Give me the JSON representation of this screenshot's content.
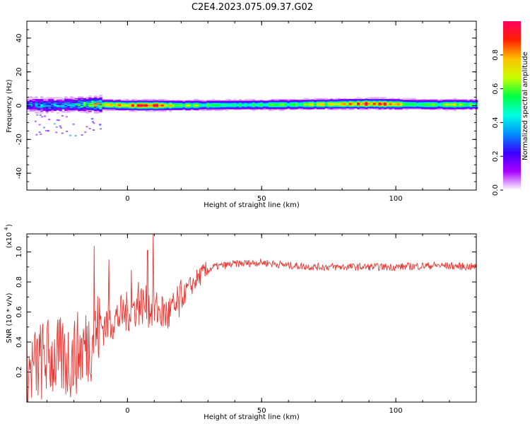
{
  "title": "C2E4.2023.075.09.37.G02",
  "chart_data": [
    {
      "type": "heatmap",
      "xlabel": "Height of straight line (km)",
      "ylabel": "Frequency (Hz)",
      "xlim": [
        -37.5,
        130
      ],
      "ylim": [
        -50,
        50
      ],
      "xticks": [
        0,
        50,
        100
      ],
      "yticks": [
        -40,
        -20,
        0,
        20,
        40
      ],
      "colorbar": {
        "label": "Normalized spectral amplitude",
        "range": [
          0,
          1
        ],
        "ticks": [
          "0.0",
          "0.2",
          "0.4",
          "0.6",
          "0.8"
        ],
        "colors": [
          "#ffffff",
          "#a800ff",
          "#3a00ff",
          "#0090ff",
          "#00ffe0",
          "#00ff40",
          "#c8ff00",
          "#ffc000",
          "#ff2000",
          "#ff0060"
        ]
      },
      "ridge": {
        "center_frequency_hz": [
          {
            "x": -37,
            "f": 0.5
          },
          {
            "x": -30,
            "f": 0.0
          },
          {
            "x": -20,
            "f": 0.5
          },
          {
            "x": -10,
            "f": 0.5
          },
          {
            "x": 0,
            "f": 0.0
          },
          {
            "x": 20,
            "f": 0.0
          },
          {
            "x": 60,
            "f": 0.5
          },
          {
            "x": 90,
            "f": 1.0
          },
          {
            "x": 110,
            "f": 0.5
          },
          {
            "x": 130,
            "f": 0.5
          }
        ],
        "amplitude": [
          {
            "x": -37,
            "a": 0.3
          },
          {
            "x": -25,
            "a": 0.35
          },
          {
            "x": -15,
            "a": 0.45
          },
          {
            "x": -8,
            "a": 0.75
          },
          {
            "x": 0,
            "a": 0.85
          },
          {
            "x": 10,
            "a": 0.9
          },
          {
            "x": 15,
            "a": 0.8
          },
          {
            "x": 20,
            "a": 0.6
          },
          {
            "x": 40,
            "a": 0.5
          },
          {
            "x": 60,
            "a": 0.55
          },
          {
            "x": 70,
            "a": 0.65
          },
          {
            "x": 80,
            "a": 0.75
          },
          {
            "x": 88,
            "a": 0.95
          },
          {
            "x": 98,
            "a": 0.9
          },
          {
            "x": 103,
            "a": 0.55
          },
          {
            "x": 115,
            "a": 0.55
          },
          {
            "x": 122,
            "a": 0.7
          },
          {
            "x": 130,
            "a": 0.55
          }
        ]
      }
    },
    {
      "type": "line",
      "xlabel": "Height of straight line (km)",
      "ylabel": "SNR (10 * v/v)",
      "yscale_label": "(x10",
      "yscale_exponent": "4",
      "xlim": [
        -37.5,
        130
      ],
      "ylim": [
        0,
        1.12
      ],
      "xticks": [
        0,
        50,
        100
      ],
      "yticks": [
        0.2,
        0.4,
        0.6,
        0.8,
        1.0
      ],
      "series": [
        {
          "color": "#e53935",
          "trend": [
            {
              "x": -37,
              "y": 0.2
            },
            {
              "x": -30,
              "y": 0.3
            },
            {
              "x": -22,
              "y": 0.28
            },
            {
              "x": -15,
              "y": 0.38
            },
            {
              "x": -10,
              "y": 0.5
            },
            {
              "x": -5,
              "y": 0.55
            },
            {
              "x": 0,
              "y": 0.6
            },
            {
              "x": 5,
              "y": 0.65
            },
            {
              "x": 10,
              "y": 0.62
            },
            {
              "x": 15,
              "y": 0.58
            },
            {
              "x": 18,
              "y": 0.62
            },
            {
              "x": 22,
              "y": 0.74
            },
            {
              "x": 27,
              "y": 0.84
            },
            {
              "x": 32,
              "y": 0.9
            },
            {
              "x": 40,
              "y": 0.92
            },
            {
              "x": 50,
              "y": 0.93
            },
            {
              "x": 60,
              "y": 0.91
            },
            {
              "x": 70,
              "y": 0.9
            },
            {
              "x": 85,
              "y": 0.9
            },
            {
              "x": 100,
              "y": 0.9
            },
            {
              "x": 115,
              "y": 0.91
            },
            {
              "x": 130,
              "y": 0.9
            }
          ],
          "spikes": [
            {
              "x": -12.5,
              "y": 1.04
            },
            {
              "x": -7,
              "y": 0.95
            },
            {
              "x": 9.5,
              "y": 1.12
            },
            {
              "x": 7.5,
              "y": 1.01
            },
            {
              "x": 1.5,
              "y": 0.88
            },
            {
              "x": 4,
              "y": 0.8
            }
          ]
        }
      ]
    }
  ]
}
